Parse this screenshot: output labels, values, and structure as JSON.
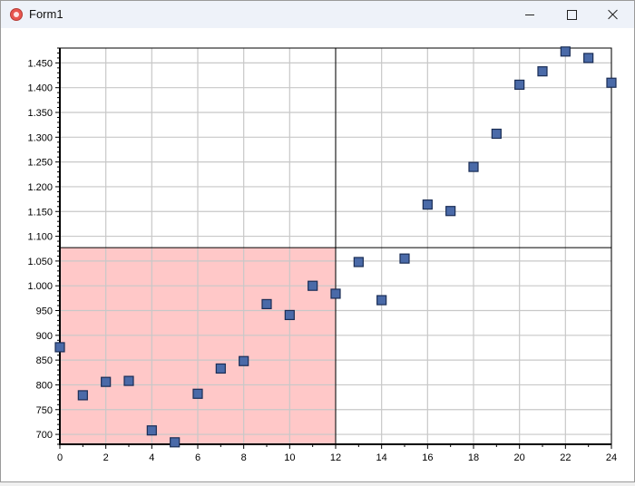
{
  "window": {
    "title": "Form1",
    "icon": "app-icon",
    "controls": {
      "minimize": "minimize-icon",
      "maximize": "maximize-icon",
      "close": "close-icon"
    }
  },
  "chart_data": {
    "type": "scatter",
    "xlim": [
      0,
      24
    ],
    "ylim": [
      680,
      1480
    ],
    "xticks": [
      0,
      2,
      4,
      6,
      8,
      10,
      12,
      14,
      16,
      18,
      20,
      22,
      24
    ],
    "xtick_labels": [
      "0",
      "2",
      "4",
      "6",
      "8",
      "10",
      "12",
      "14",
      "16",
      "18",
      "20",
      "22",
      "24"
    ],
    "yticks": [
      700,
      750,
      800,
      850,
      900,
      950,
      1000,
      1050,
      1100,
      1150,
      1200,
      1250,
      1300,
      1350,
      1400,
      1450
    ],
    "ytick_labels": [
      "700",
      "750",
      "800",
      "850",
      "900",
      "950",
      "1.000",
      "1.050",
      "1.100",
      "1.150",
      "1.200",
      "1.250",
      "1.300",
      "1.350",
      "1.400",
      "1.450"
    ],
    "grid": true,
    "crosshair": {
      "x": 12,
      "y": 1077
    },
    "highlight_region": {
      "x": [
        0,
        12
      ],
      "y": [
        680,
        1077
      ],
      "color": "#ffc8c8"
    },
    "marker": {
      "shape": "square",
      "fill": "#4a6aa8",
      "stroke": "#1a2d55"
    },
    "points": [
      {
        "x": 0,
        "y": 876
      },
      {
        "x": 1,
        "y": 779
      },
      {
        "x": 2,
        "y": 806
      },
      {
        "x": 3,
        "y": 808
      },
      {
        "x": 4,
        "y": 708
      },
      {
        "x": 5,
        "y": 684
      },
      {
        "x": 6,
        "y": 782
      },
      {
        "x": 7,
        "y": 833
      },
      {
        "x": 8,
        "y": 848
      },
      {
        "x": 9,
        "y": 963
      },
      {
        "x": 10,
        "y": 941
      },
      {
        "x": 11,
        "y": 1000
      },
      {
        "x": 12,
        "y": 984
      },
      {
        "x": 13,
        "y": 1048
      },
      {
        "x": 14,
        "y": 971
      },
      {
        "x": 15,
        "y": 1055
      },
      {
        "x": 16,
        "y": 1164
      },
      {
        "x": 17,
        "y": 1151
      },
      {
        "x": 18,
        "y": 1240
      },
      {
        "x": 19,
        "y": 1307
      },
      {
        "x": 20,
        "y": 1406
      },
      {
        "x": 21,
        "y": 1433
      },
      {
        "x": 22,
        "y": 1473
      },
      {
        "x": 23,
        "y": 1460
      },
      {
        "x": 24,
        "y": 1410
      }
    ]
  }
}
